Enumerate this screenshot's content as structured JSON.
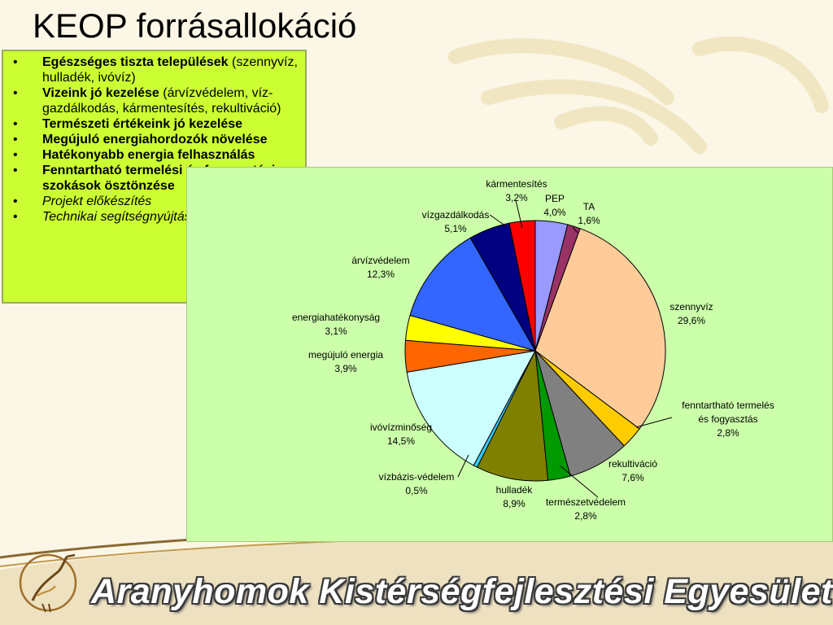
{
  "slide": {
    "title": "KEOP forrásallokáció",
    "footer": "Aranyhomok Kistérségfejlesztési Egyesület"
  },
  "bullets": [
    {
      "bold": "Egészséges tiszta települések",
      "rest": " (szennyvíz, hulladék, ivóvíz)",
      "italic": false
    },
    {
      "bold": "Vizeink jó kezelése",
      "rest": " (árvízvédelem, víz-gazdálkodás, kármentesítés, rekultiváció)",
      "italic": false
    },
    {
      "bold": "Természeti értékeink jó kezelése",
      "rest": "",
      "italic": false
    },
    {
      "bold": "Megújuló energiahordozók növelése",
      "rest": "",
      "italic": false
    },
    {
      "bold": "Hatékonyabb energia felhasználás",
      "rest": "",
      "italic": false
    },
    {
      "bold": "Fenntartható termelési és fogyasztási szokások ösztönzése",
      "rest": "",
      "italic": false
    },
    {
      "bold": "",
      "rest": "Projekt előkészítés",
      "italic": true
    },
    {
      "bold": "",
      "rest": "Technikai segítségnyújtás",
      "italic": true
    }
  ],
  "chart_data": {
    "type": "pie",
    "start": "top, clockwise",
    "slices": [
      {
        "label": "PEP",
        "value": 4.0,
        "pct": "4,0%",
        "color": "#9999ff"
      },
      {
        "label": "TA",
        "value": 1.6,
        "pct": "1,6%",
        "color": "#993366"
      },
      {
        "label": "szennyvíz",
        "value": 29.6,
        "pct": "29,6%",
        "color": "#ffcc99"
      },
      {
        "label": "fenntartható termelés és fogyasztás",
        "lines": [
          "fenntartható termelés",
          "és fogyasztás"
        ],
        "value": 2.8,
        "pct": "2,8%",
        "color": "#ffcc00"
      },
      {
        "label": "rekultiváció",
        "value": 7.6,
        "pct": "7,6%",
        "color": "#808080"
      },
      {
        "label": "természetvédelem",
        "value": 2.8,
        "pct": "2,8%",
        "color": "#009900"
      },
      {
        "label": "hulladék",
        "value": 8.9,
        "pct": "8,9%",
        "color": "#808000"
      },
      {
        "label": "vízbázis-védelem",
        "value": 0.5,
        "pct": "0,5%",
        "color": "#33ccff"
      },
      {
        "label": "ivóvízminőség",
        "value": 14.5,
        "pct": "14,5%",
        "color": "#ccffff"
      },
      {
        "label": "megújuló energia",
        "value": 3.9,
        "pct": "3,9%",
        "color": "#ff6600"
      },
      {
        "label": "energiahatékonyság",
        "value": 3.1,
        "pct": "3,1%",
        "color": "#ffff00"
      },
      {
        "label": "árvízvédelem",
        "value": 12.3,
        "pct": "12,3%",
        "color": "#3366ff"
      },
      {
        "label": "vízgazdálkodás",
        "value": 5.1,
        "pct": "5,1%",
        "color": "#000080"
      },
      {
        "label": "kármentesítés",
        "value": 3.2,
        "pct": "3,2%",
        "color": "#ff0000"
      }
    ]
  }
}
